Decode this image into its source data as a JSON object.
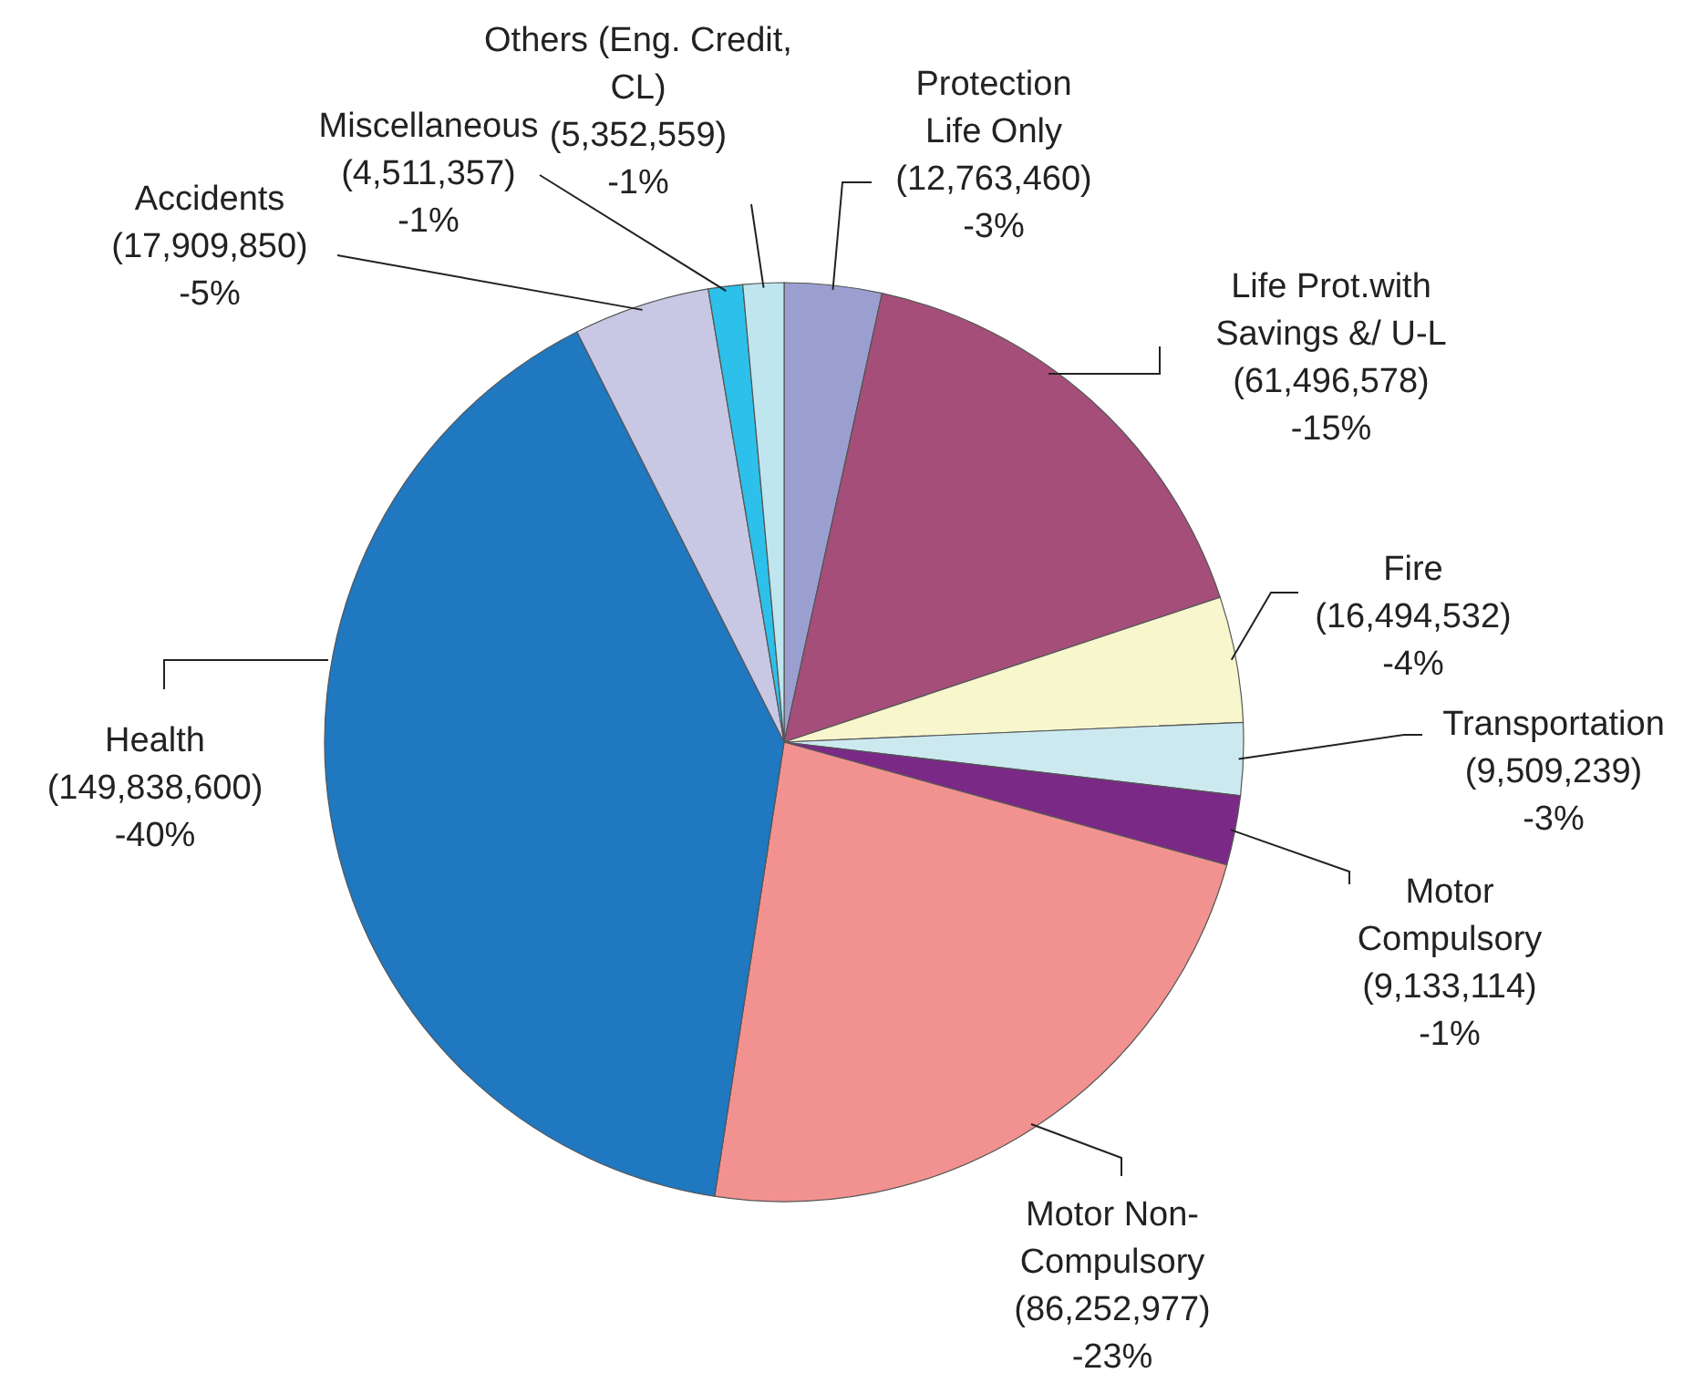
{
  "chart_data": {
    "type": "pie",
    "categories": [
      "Protection Life Only",
      "Life Prot.with Savings &/ U-L",
      "Fire",
      "Transportation",
      "Motor Compulsory",
      "Motor Non-Compulsory",
      "Health",
      "Accidents",
      "Miscellaneous",
      "Others (Eng. Credit, CL)"
    ],
    "values": [
      12763460,
      61496578,
      16494532,
      9509239,
      9133114,
      86252977,
      149838600,
      17909850,
      4511357,
      5352559
    ],
    "value_labels": [
      "(12,763,460)\n-3%",
      "(61,496,578)\n-15%",
      "(16,494,532)\n-4%",
      "(9,509,239)\n-3%",
      "(9,133,114)\n-1%",
      "(86,252,977)\n-23%",
      "(149,838,600)\n-40%",
      "(17,909,850)\n-5%",
      "(4,511,357)\n-1%",
      "(5,352,559)\n-1%"
    ],
    "colors": [
      "#9b9fd0",
      "#a54e7a",
      "#f8f6cc",
      "#cce9f0",
      "#7a2a86",
      "#f29290",
      "#1f78c0",
      "#c8c8e4",
      "#2cc0ea",
      "#bfe6ef"
    ]
  }
}
